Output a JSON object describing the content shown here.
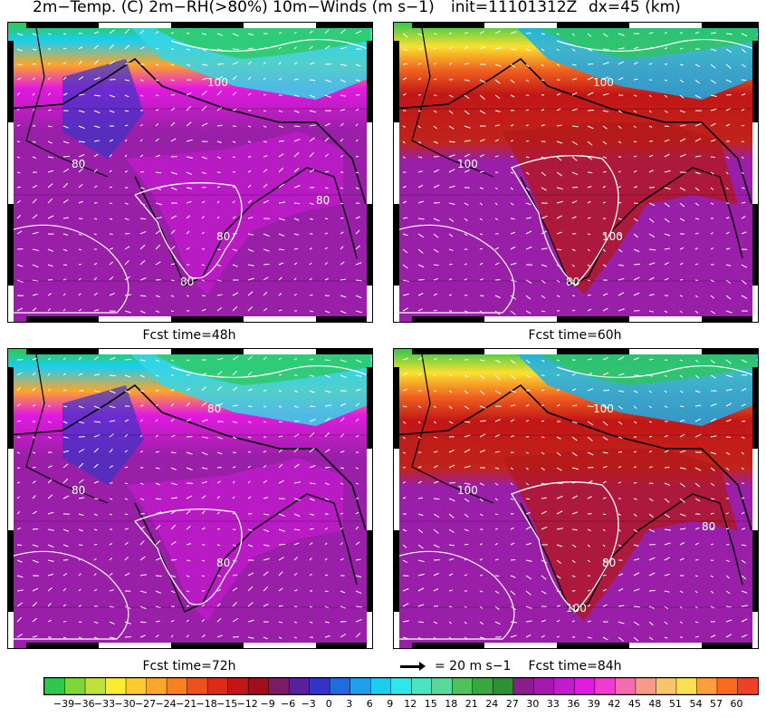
{
  "header": {
    "title": "2m−Temp. (C) 2m−RH(>80%) 10m−Winds (m s−1)",
    "init": "init=11101312Z",
    "dx": "dx=45 (km)"
  },
  "panels": [
    {
      "id": "p1",
      "caption": "Fcst time=48h",
      "rh_labels": [
        "80",
        "80",
        "100",
        "80",
        "80"
      ]
    },
    {
      "id": "p2",
      "caption": "Fcst time=60h",
      "rh_labels": [
        "100",
        "100",
        "100",
        "80"
      ]
    },
    {
      "id": "p3",
      "caption": "Fcst time=72h",
      "rh_labels": [
        "80",
        "80",
        "80"
      ]
    },
    {
      "id": "p4",
      "caption": "Fcst time=84h",
      "rh_labels": [
        "100",
        "80",
        "100",
        "100",
        "80"
      ]
    }
  ],
  "wind_reference": {
    "label": "= 20 m s−1",
    "speed_ms": 20
  },
  "colorbar": {
    "ticks": [
      "−39",
      "−36",
      "−33",
      "−30",
      "−27",
      "−24",
      "−21",
      "−18",
      "−15",
      "−12",
      "−9",
      "−6",
      "−3",
      "0",
      "3",
      "6",
      "9",
      "12",
      "15",
      "18",
      "21",
      "24",
      "27",
      "30",
      "33",
      "36",
      "39",
      "42",
      "45",
      "48",
      "51",
      "54",
      "57",
      "60"
    ],
    "colors": [
      "#2ec84b",
      "#7fd63a",
      "#c2e23a",
      "#fcec30",
      "#fccb30",
      "#fca62a",
      "#fa7f1f",
      "#f0511c",
      "#dd2a1a",
      "#c21616",
      "#a00e1e",
      "#7a1b64",
      "#5a1f9a",
      "#3233c8",
      "#1f6be0",
      "#1ca0ea",
      "#1ccdf0",
      "#2ee7e8",
      "#48e6c2",
      "#5ad79a",
      "#4cc15c",
      "#37a83e",
      "#2c9133",
      "#8a1e8c",
      "#a41ab0",
      "#c21ace",
      "#e21ae0",
      "#f03ad0",
      "#f56ab0",
      "#f79a8a",
      "#f9c46a",
      "#fbe050",
      "#fc9e3a",
      "#fc6a22",
      "#f0402a"
    ]
  }
}
